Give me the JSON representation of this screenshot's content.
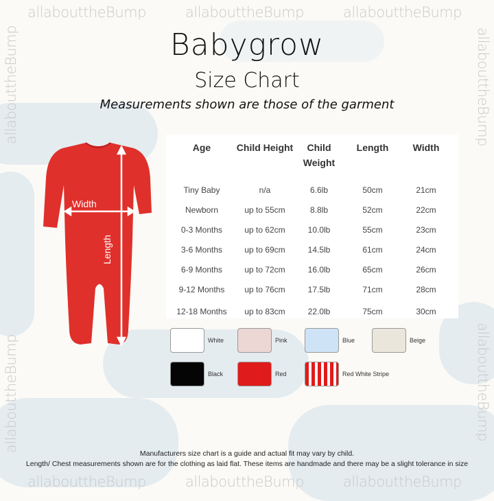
{
  "watermark": "allabouttheBump",
  "title": "Babygrow",
  "subtitle": "Size Chart",
  "tagline": "Measurements shown are those of the garment",
  "garment": {
    "color": "#e0302b",
    "width_label": "Width",
    "length_label": "Length"
  },
  "table": {
    "headers": [
      "Age",
      "Child Height",
      "Child Weight",
      "Length",
      "Width"
    ],
    "rows": [
      [
        "Tiny Baby",
        "n/a",
        "6.6lb",
        "50cm",
        "21cm"
      ],
      [
        "Newborn",
        "up to 55cm",
        "8.8lb",
        "52cm",
        "22cm"
      ],
      [
        "0-3 Months",
        "up to 62cm",
        "10.0lb",
        "55cm",
        "23cm"
      ],
      [
        "3-6 Months",
        "up to 69cm",
        "14.5lb",
        "61cm",
        "24cm"
      ],
      [
        "6-9 Months",
        "up to 72cm",
        "16.0lb",
        "65cm",
        "26cm"
      ],
      [
        "9-12 Months",
        "up to 76cm",
        "17.5lb",
        "71cm",
        "28cm"
      ],
      [
        "12-18 Months",
        "up to 83cm",
        "22.0lb",
        "75cm",
        "30cm"
      ]
    ]
  },
  "colours": [
    {
      "name": "White",
      "hex": "#ffffff"
    },
    {
      "name": "Pink",
      "hex": "#ecd7d4"
    },
    {
      "name": "Blue",
      "hex": "#cfe3f6"
    },
    {
      "name": "Beige",
      "hex": "#ebe6dc"
    },
    {
      "name": "Black",
      "hex": "#050505"
    },
    {
      "name": "Red",
      "hex": "#e01b1b"
    },
    {
      "name": "Red White Stripe",
      "hex": "stripe"
    }
  ],
  "notes": [
    "Manufacturers size chart is a guide and actual fit may vary by child.",
    "Length/ Chest measurements shown are for the clothing as laid flat. These items are handmade and there may be a slight tolerance in size"
  ]
}
